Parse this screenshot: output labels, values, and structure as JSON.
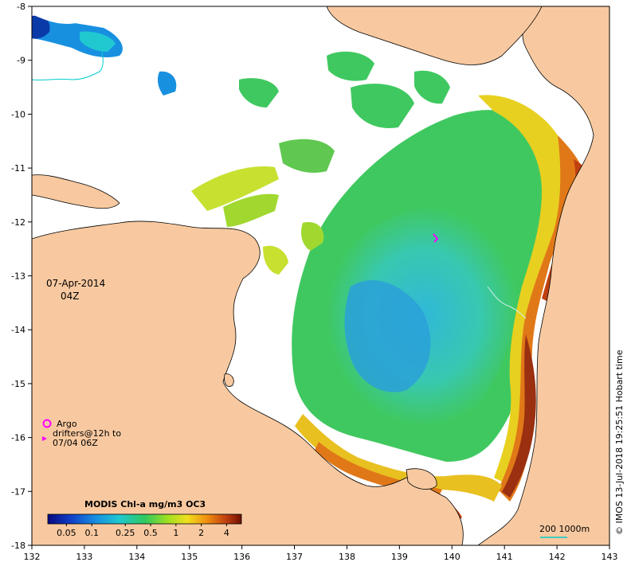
{
  "map": {
    "x_ticks": [
      "132",
      "133",
      "134",
      "135",
      "136",
      "137",
      "138",
      "139",
      "140",
      "141",
      "142",
      "143"
    ],
    "y_ticks": [
      "-8",
      "-9",
      "-10",
      "-11",
      "-12",
      "-13",
      "-14",
      "-15",
      "-16",
      "-17",
      "-18"
    ],
    "date": "07-Apr-2014",
    "time": "04Z",
    "colors": {
      "land": "#f8c9a0",
      "no_data": "#ffffff",
      "coast": "#000000"
    }
  },
  "legend": {
    "argo_label": "Argo",
    "drifters_line1": "drifters@12h to",
    "drifters_line2": "07/04 06Z",
    "argo_color": "#ff00ff"
  },
  "colorbar": {
    "title": "MODIS Chl-a mg/m3 OC3",
    "ticks": [
      "0.05",
      "0.1",
      "0.25",
      "0.5",
      "1",
      "2",
      "4"
    ],
    "tick_values": [
      0.05,
      0.1,
      0.25,
      0.5,
      1,
      2,
      4
    ],
    "range": [
      0.03,
      6
    ]
  },
  "scale": {
    "label": "200  1000m",
    "color": "#00cccc"
  },
  "credit": "© IMOS 13-Jul-2018 19:25:51 Hobart time"
}
